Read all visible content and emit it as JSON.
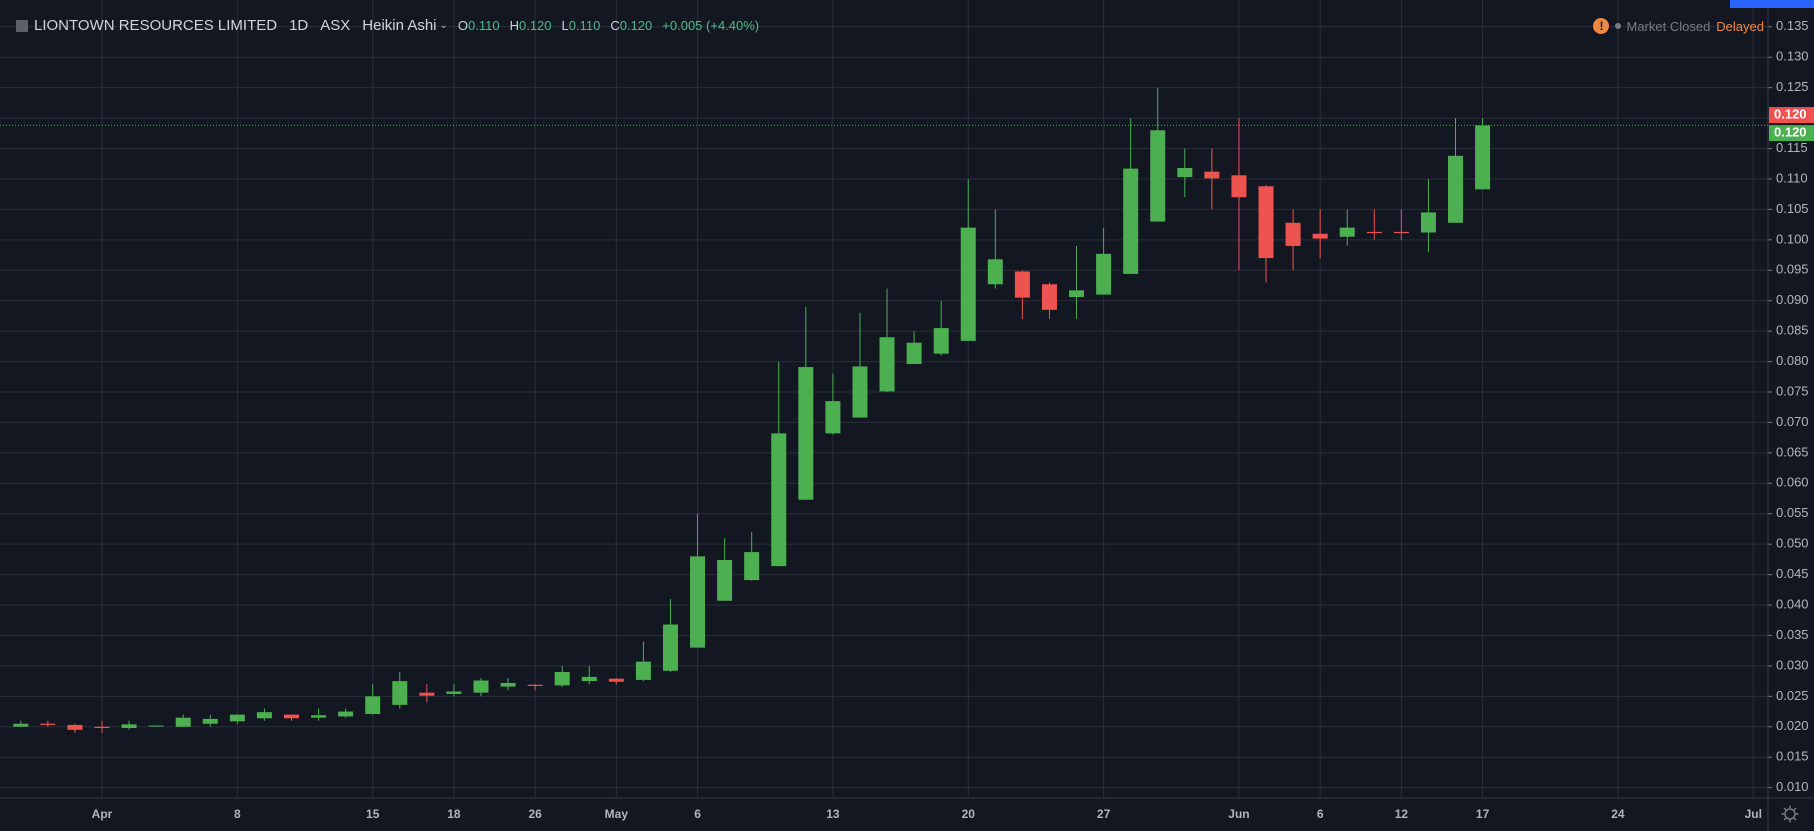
{
  "chart_data": {
    "type": "candlestick",
    "title": "LIONTOWN RESOURCES LIMITED",
    "interval": "1D",
    "exchange": "ASX",
    "chart_style": "Heikin Ashi",
    "ohlc_legend": [
      {
        "key": "O",
        "value": "0.110"
      },
      {
        "key": "H",
        "value": "0.120"
      },
      {
        "key": "L",
        "value": "0.110"
      },
      {
        "key": "C",
        "value": "0.120"
      }
    ],
    "change": "+0.005 (+4.40%)",
    "market_status": "Market Closed",
    "data_status": "Delayed",
    "categories": [
      null,
      null,
      null,
      "Apr",
      null,
      null,
      null,
      null,
      "8",
      null,
      null,
      null,
      null,
      "15",
      null,
      null,
      "18",
      null,
      null,
      "26",
      null,
      null,
      "May",
      null,
      null,
      "6",
      null,
      null,
      null,
      null,
      "13",
      null,
      null,
      null,
      null,
      "20",
      null,
      null,
      null,
      null,
      "27",
      null,
      null,
      null,
      null,
      "Jun",
      null,
      null,
      "6",
      null,
      null,
      "12",
      null,
      null,
      "17",
      null,
      null,
      null,
      null,
      "24",
      null,
      null,
      null,
      null,
      "Jul"
    ],
    "up_color": "#4caf50",
    "down_color": "#ef5350",
    "open": [
      0.02,
      0.0205,
      0.0203,
      0.02,
      0.0198,
      0.0201,
      0.02,
      0.0205,
      0.0209,
      0.0214,
      0.022,
      0.0215,
      0.0217,
      0.0221,
      0.0236,
      0.0256,
      0.0254,
      0.0256,
      0.0266,
      0.0269,
      0.0268,
      0.0275,
      0.0279,
      0.0277,
      0.0292,
      0.033,
      0.0407,
      0.0441,
      0.0464,
      0.0573,
      0.0682,
      0.0708,
      0.0751,
      0.0796,
      0.0813,
      0.0834,
      0.0927,
      0.0948,
      0.0927,
      0.0906,
      0.091,
      0.0944,
      0.103,
      0.1103,
      0.1112,
      0.1106,
      0.1088,
      0.1028,
      0.101,
      0.1005,
      0.1013,
      0.1013,
      0.1012,
      0.1028,
      0.1083,
      null,
      null,
      null,
      null,
      null,
      null,
      null,
      null,
      null,
      null
    ],
    "high": [
      0.021,
      0.021,
      0.0205,
      0.021,
      0.021,
      0.0202,
      0.022,
      0.022,
      0.022,
      0.023,
      0.022,
      0.023,
      0.023,
      0.027,
      0.029,
      0.027,
      0.027,
      0.028,
      0.028,
      0.027,
      0.03,
      0.03,
      0.028,
      0.034,
      0.041,
      0.055,
      0.051,
      0.052,
      0.08,
      0.089,
      0.078,
      0.088,
      0.092,
      0.085,
      0.09,
      0.11,
      0.105,
      0.095,
      0.093,
      0.099,
      0.102,
      0.12,
      0.125,
      0.115,
      0.115,
      0.12,
      0.109,
      0.105,
      0.105,
      0.105,
      0.105,
      0.105,
      0.11,
      0.12,
      0.12,
      null,
      null,
      null,
      null,
      null,
      null,
      null,
      null,
      null,
      null
    ],
    "low": [
      0.02,
      0.02,
      0.019,
      0.019,
      0.0195,
      0.02,
      0.02,
      0.02,
      0.0205,
      0.021,
      0.021,
      0.021,
      0.0215,
      0.022,
      0.023,
      0.024,
      0.025,
      0.025,
      0.026,
      0.026,
      0.0265,
      0.027,
      0.027,
      0.0275,
      0.029,
      0.033,
      0.0407,
      0.044,
      0.0464,
      0.0573,
      0.068,
      0.0708,
      0.075,
      0.0796,
      0.081,
      0.0834,
      0.092,
      0.087,
      0.087,
      0.087,
      0.091,
      0.0944,
      0.103,
      0.107,
      0.105,
      0.095,
      0.093,
      0.095,
      0.097,
      0.099,
      0.1,
      0.1,
      0.098,
      0.1028,
      0.1083,
      null,
      null,
      null,
      null,
      null,
      null,
      null,
      null,
      null,
      null
    ],
    "close": [
      0.0205,
      0.0203,
      0.0195,
      0.0198,
      0.0204,
      0.0202,
      0.0215,
      0.0213,
      0.022,
      0.0224,
      0.0214,
      0.0219,
      0.0225,
      0.025,
      0.0275,
      0.0251,
      0.0258,
      0.0276,
      0.0272,
      0.0267,
      0.029,
      0.0282,
      0.0274,
      0.0307,
      0.0368,
      0.048,
      0.0474,
      0.0487,
      0.0682,
      0.0791,
      0.0735,
      0.0792,
      0.084,
      0.0831,
      0.0855,
      0.102,
      0.0968,
      0.0905,
      0.0885,
      0.0917,
      0.0977,
      0.1117,
      0.118,
      0.1118,
      0.1101,
      0.107,
      0.097,
      0.099,
      0.1002,
      0.102,
      0.1011,
      0.1011,
      0.1045,
      0.1138,
      0.1188,
      null,
      null,
      null,
      null,
      null,
      null,
      null,
      null,
      null,
      null
    ],
    "ylim": [
      0.0083,
      0.1394
    ],
    "yticks": [
      {
        "value": 0.01,
        "label": "0.010"
      },
      {
        "value": 0.015,
        "label": "0.015"
      },
      {
        "value": 0.02,
        "label": "0.020"
      },
      {
        "value": 0.025,
        "label": "0.025"
      },
      {
        "value": 0.03,
        "label": "0.030"
      },
      {
        "value": 0.035,
        "label": "0.035"
      },
      {
        "value": 0.04,
        "label": "0.040"
      },
      {
        "value": 0.045,
        "label": "0.045"
      },
      {
        "value": 0.05,
        "label": "0.050"
      },
      {
        "value": 0.055,
        "label": "0.055"
      },
      {
        "value": 0.06,
        "label": "0.060"
      },
      {
        "value": 0.065,
        "label": "0.065"
      },
      {
        "value": 0.07,
        "label": "0.070"
      },
      {
        "value": 0.075,
        "label": "0.075"
      },
      {
        "value": 0.08,
        "label": "0.080"
      },
      {
        "value": 0.085,
        "label": "0.085"
      },
      {
        "value": 0.09,
        "label": "0.090"
      },
      {
        "value": 0.095,
        "label": "0.095"
      },
      {
        "value": 0.1,
        "label": "0.100"
      },
      {
        "value": 0.105,
        "label": "0.105"
      },
      {
        "value": 0.11,
        "label": "0.110"
      },
      {
        "value": 0.115,
        "label": "0.115"
      },
      {
        "value": 0.12,
        "label": "0.120"
      },
      {
        "value": 0.125,
        "label": "0.125"
      },
      {
        "value": 0.13,
        "label": "0.130"
      },
      {
        "value": 0.135,
        "label": "0.135"
      }
    ],
    "price_labels": [
      {
        "value": 0.12,
        "label": "0.120",
        "color": "#ef5350"
      },
      {
        "value": 0.12,
        "label": "0.120",
        "color": "#4caf50"
      }
    ],
    "grid": true
  }
}
